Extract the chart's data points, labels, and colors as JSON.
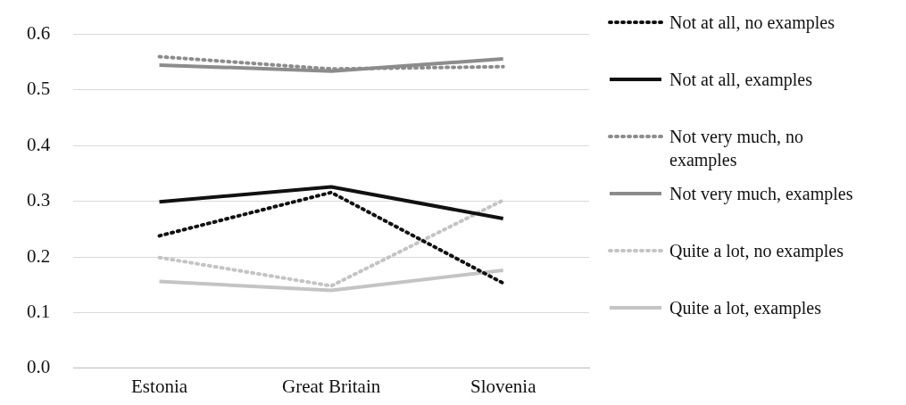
{
  "chart_data": {
    "type": "line",
    "categories": [
      "Estonia",
      "Great Britain",
      "Slovenia"
    ],
    "series": [
      {
        "name": "Not at all, no examples",
        "color": "#111111",
        "line_style": "dotted",
        "values": [
          0.238,
          0.316,
          0.153
        ]
      },
      {
        "name": "Not at all, examples",
        "color": "#111111",
        "line_style": "solid",
        "values": [
          0.299,
          0.326,
          0.269
        ]
      },
      {
        "name": "Not very much, no examples",
        "color": "#8c8c8c",
        "line_style": "dotted",
        "values": [
          0.56,
          0.538,
          0.542
        ]
      },
      {
        "name": "Not very much, examples",
        "color": "#8c8c8c",
        "line_style": "solid",
        "values": [
          0.545,
          0.534,
          0.556
        ]
      },
      {
        "name": "Quite a lot, no examples",
        "color": "#c4c4c4",
        "line_style": "dotted",
        "values": [
          0.199,
          0.148,
          0.302
        ]
      },
      {
        "name": "Quite a lot, examples",
        "color": "#c4c4c4",
        "line_style": "solid",
        "values": [
          0.156,
          0.14,
          0.176
        ]
      }
    ],
    "ylim": [
      0,
      0.6
    ],
    "yticks": [
      {
        "value": 0,
        "label": "0.0"
      },
      {
        "value": 0.1,
        "label": "0.1"
      },
      {
        "value": 0.2,
        "label": "0.2"
      },
      {
        "value": 0.3,
        "label": "0.3"
      },
      {
        "value": 0.4,
        "label": "0.4"
      },
      {
        "value": 0.5,
        "label": "0.5"
      },
      {
        "value": 0.6,
        "label": "0.6"
      }
    ],
    "grid": "y",
    "legend": "right",
    "marker": "none"
  }
}
